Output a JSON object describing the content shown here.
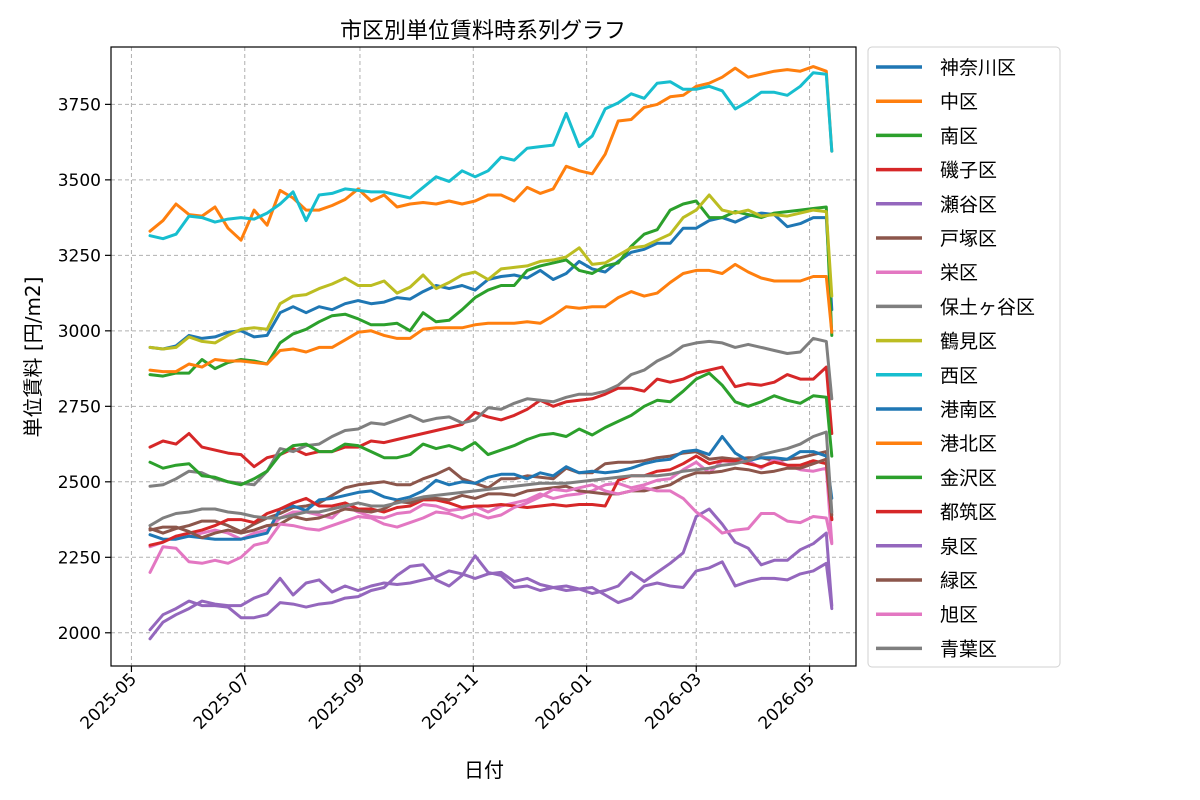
{
  "chart_data": {
    "type": "line",
    "title": "市区別単位賃料時系列グラフ",
    "xlabel": "日付",
    "ylabel": "単位賃料 [円/m2]",
    "x_start": "2025-05-11",
    "x_step_days": 7,
    "x_ticks": [
      "2025-05",
      "2025-07",
      "2025-09",
      "2025-11",
      "2026-01",
      "2026-03",
      "2026-05"
    ],
    "x_tick_dates": [
      "2025-05-01",
      "2025-07-01",
      "2025-09-01",
      "2025-11-01",
      "2026-01-01",
      "2026-03-01",
      "2026-05-01"
    ],
    "xlim": [
      "2025-04-20",
      "2026-05-26"
    ],
    "y_ticks": [
      2000,
      2250,
      2500,
      2750,
      3000,
      3250,
      3500,
      3750
    ],
    "ylim": [
      1890,
      3940
    ],
    "grid": true,
    "legend_position": "outside-right",
    "series": [
      {
        "name": "神奈川区",
        "color": "#1f77b4",
        "values": [
          2945,
          2940,
          2950,
          2985,
          2975,
          2980,
          2995,
          3000,
          2980,
          2985,
          3060,
          3080,
          3060,
          3080,
          3070,
          3090,
          3100,
          3090,
          3095,
          3110,
          3105,
          3130,
          3150,
          3140,
          3150,
          3135,
          3170,
          3180,
          3185,
          3175,
          3200,
          3170,
          3190,
          3230,
          3205,
          3195,
          3230,
          3260,
          3270,
          3290,
          3290,
          3340,
          3340,
          3365,
          3375,
          3360,
          3380,
          3390,
          3385,
          3345,
          3355,
          3375,
          3375,
          3070
        ]
      },
      {
        "name": "中区",
        "color": "#ff7f0e",
        "values": [
          3330,
          3365,
          3420,
          3385,
          3380,
          3410,
          3340,
          3300,
          3400,
          3350,
          3465,
          3440,
          3400,
          3400,
          3415,
          3435,
          3470,
          3430,
          3450,
          3410,
          3420,
          3425,
          3420,
          3430,
          3420,
          3430,
          3450,
          3450,
          3430,
          3475,
          3455,
          3470,
          3545,
          3530,
          3520,
          3585,
          3695,
          3700,
          3740,
          3750,
          3775,
          3780,
          3810,
          3820,
          3840,
          3870,
          3840,
          3850,
          3860,
          3865,
          3860,
          3875,
          3860,
          3595
        ]
      },
      {
        "name": "南区",
        "color": "#2ca02c",
        "values": [
          2855,
          2850,
          2860,
          2860,
          2905,
          2875,
          2895,
          2905,
          2900,
          2890,
          2960,
          2990,
          3005,
          3030,
          3050,
          3055,
          3040,
          3020,
          3020,
          3025,
          3000,
          3060,
          3030,
          3035,
          3070,
          3110,
          3135,
          3150,
          3150,
          3200,
          3215,
          3225,
          3235,
          3200,
          3190,
          3215,
          3225,
          3280,
          3320,
          3335,
          3400,
          3420,
          3430,
          3375,
          3375,
          3395,
          3385,
          3375,
          3390,
          3395,
          3400,
          3405,
          3410,
          2985
        ]
      },
      {
        "name": "磯子区",
        "color": "#d62728",
        "values": [
          2615,
          2635,
          2625,
          2660,
          2615,
          2605,
          2595,
          2590,
          2550,
          2580,
          2590,
          2610,
          2590,
          2600,
          2600,
          2615,
          2615,
          2635,
          2630,
          2640,
          2650,
          2660,
          2670,
          2680,
          2690,
          2730,
          2715,
          2705,
          2720,
          2740,
          2770,
          2750,
          2765,
          2770,
          2775,
          2790,
          2810,
          2810,
          2800,
          2840,
          2830,
          2840,
          2860,
          2870,
          2880,
          2815,
          2825,
          2820,
          2830,
          2855,
          2840,
          2840,
          2880,
          2660
        ]
      },
      {
        "name": "瀬谷区",
        "color": "#9467bd",
        "values": [
          2010,
          2060,
          2080,
          2105,
          2090,
          2090,
          2085,
          2050,
          2050,
          2060,
          2100,
          2095,
          2085,
          2095,
          2100,
          2115,
          2120,
          2140,
          2150,
          2190,
          2220,
          2225,
          2175,
          2155,
          2190,
          2255,
          2200,
          2190,
          2150,
          2155,
          2140,
          2150,
          2155,
          2145,
          2130,
          2140,
          2155,
          2200,
          2170,
          2200,
          2230,
          2265,
          2385,
          2410,
          2360,
          2300,
          2280,
          2225,
          2240,
          2240,
          2275,
          2295,
          2330,
          2090
        ]
      },
      {
        "name": "戸塚区",
        "color": "#8c564b",
        "values": [
          2345,
          2330,
          2345,
          2355,
          2370,
          2370,
          2355,
          2335,
          2360,
          2380,
          2395,
          2415,
          2420,
          2430,
          2455,
          2480,
          2490,
          2495,
          2500,
          2490,
          2490,
          2510,
          2525,
          2545,
          2510,
          2495,
          2480,
          2510,
          2510,
          2520,
          2515,
          2510,
          2545,
          2530,
          2530,
          2560,
          2565,
          2565,
          2570,
          2580,
          2585,
          2595,
          2600,
          2575,
          2580,
          2575,
          2580,
          2580,
          2570,
          2575,
          2580,
          2590,
          2600,
          2375
        ]
      },
      {
        "name": "栄区",
        "color": "#e377c2",
        "values": [
          2285,
          2300,
          2320,
          2320,
          2330,
          2340,
          2330,
          2310,
          2330,
          2340,
          2380,
          2400,
          2400,
          2390,
          2380,
          2420,
          2400,
          2385,
          2380,
          2395,
          2400,
          2425,
          2420,
          2405,
          2410,
          2420,
          2400,
          2420,
          2430,
          2440,
          2460,
          2445,
          2455,
          2460,
          2470,
          2490,
          2495,
          2480,
          2490,
          2505,
          2510,
          2540,
          2565,
          2530,
          2570,
          2565,
          2570,
          2545,
          2575,
          2555,
          2540,
          2535,
          2545,
          2300
        ]
      },
      {
        "name": "保土ヶ谷区",
        "color": "#7f7f7f",
        "values": [
          2485,
          2490,
          2510,
          2535,
          2530,
          2510,
          2500,
          2495,
          2490,
          2535,
          2610,
          2600,
          2620,
          2625,
          2650,
          2670,
          2675,
          2695,
          2690,
          2705,
          2720,
          2700,
          2710,
          2715,
          2695,
          2705,
          2745,
          2740,
          2760,
          2775,
          2770,
          2765,
          2780,
          2790,
          2790,
          2800,
          2820,
          2855,
          2870,
          2900,
          2920,
          2950,
          2960,
          2965,
          2960,
          2945,
          2955,
          2945,
          2935,
          2925,
          2930,
          2975,
          2965,
          2775
        ]
      },
      {
        "name": "鶴見区",
        "color": "#bcbd22",
        "values": [
          2945,
          2940,
          2945,
          2980,
          2965,
          2960,
          2985,
          3005,
          3010,
          3005,
          3090,
          3115,
          3120,
          3140,
          3155,
          3175,
          3150,
          3150,
          3165,
          3125,
          3145,
          3185,
          3140,
          3160,
          3185,
          3195,
          3170,
          3205,
          3210,
          3215,
          3230,
          3235,
          3245,
          3275,
          3220,
          3225,
          3250,
          3275,
          3280,
          3300,
          3320,
          3375,
          3400,
          3450,
          3400,
          3390,
          3400,
          3380,
          3385,
          3380,
          3390,
          3400,
          3395,
          3115
        ]
      },
      {
        "name": "西区",
        "color": "#17becf",
        "values": [
          3315,
          3305,
          3320,
          3380,
          3375,
          3360,
          3370,
          3375,
          3370,
          3390,
          3420,
          3460,
          3365,
          3450,
          3455,
          3470,
          3465,
          3460,
          3460,
          3450,
          3440,
          3475,
          3510,
          3495,
          3530,
          3510,
          3530,
          3575,
          3565,
          3605,
          3610,
          3615,
          3720,
          3610,
          3645,
          3735,
          3755,
          3785,
          3770,
          3820,
          3825,
          3800,
          3800,
          3810,
          3795,
          3735,
          3760,
          3790,
          3790,
          3780,
          3810,
          3855,
          3850,
          3595
        ]
      },
      {
        "name": "港南区",
        "color": "#1f77b4",
        "values": [
          2325,
          2310,
          2310,
          2320,
          2315,
          2310,
          2310,
          2310,
          2320,
          2330,
          2410,
          2420,
          2405,
          2440,
          2445,
          2455,
          2465,
          2470,
          2450,
          2440,
          2450,
          2470,
          2505,
          2490,
          2500,
          2495,
          2515,
          2525,
          2525,
          2510,
          2530,
          2520,
          2550,
          2530,
          2535,
          2530,
          2535,
          2545,
          2560,
          2570,
          2575,
          2600,
          2605,
          2590,
          2650,
          2595,
          2570,
          2580,
          2580,
          2575,
          2600,
          2600,
          2585,
          2445
        ]
      },
      {
        "name": "港北区",
        "color": "#ff7f0e",
        "values": [
          2870,
          2865,
          2865,
          2890,
          2880,
          2905,
          2900,
          2900,
          2895,
          2890,
          2935,
          2940,
          2930,
          2945,
          2945,
          2970,
          2995,
          3000,
          2985,
          2975,
          2975,
          3005,
          3010,
          3010,
          3010,
          3020,
          3025,
          3025,
          3025,
          3030,
          3025,
          3050,
          3080,
          3075,
          3080,
          3080,
          3110,
          3130,
          3115,
          3125,
          3160,
          3190,
          3200,
          3200,
          3190,
          3220,
          3195,
          3175,
          3165,
          3165,
          3165,
          3180,
          3180,
          2995
        ]
      },
      {
        "name": "金沢区",
        "color": "#2ca02c",
        "values": [
          2565,
          2545,
          2555,
          2560,
          2520,
          2515,
          2500,
          2490,
          2510,
          2535,
          2590,
          2620,
          2625,
          2600,
          2600,
          2625,
          2620,
          2600,
          2580,
          2580,
          2590,
          2625,
          2610,
          2620,
          2605,
          2630,
          2590,
          2605,
          2620,
          2640,
          2655,
          2660,
          2650,
          2675,
          2655,
          2680,
          2700,
          2720,
          2750,
          2770,
          2765,
          2800,
          2840,
          2860,
          2820,
          2765,
          2750,
          2765,
          2785,
          2770,
          2760,
          2785,
          2780,
          2585
        ]
      },
      {
        "name": "都筑区",
        "color": "#d62728",
        "values": [
          2290,
          2300,
          2320,
          2330,
          2340,
          2355,
          2375,
          2375,
          2365,
          2395,
          2410,
          2430,
          2445,
          2420,
          2420,
          2430,
          2410,
          2410,
          2400,
          2415,
          2420,
          2440,
          2440,
          2430,
          2415,
          2420,
          2420,
          2425,
          2420,
          2415,
          2420,
          2425,
          2420,
          2425,
          2425,
          2420,
          2505,
          2520,
          2520,
          2535,
          2540,
          2560,
          2585,
          2560,
          2570,
          2570,
          2560,
          2550,
          2565,
          2555,
          2555,
          2570,
          2560,
          2375
        ]
      },
      {
        "name": "泉区",
        "color": "#9467bd",
        "values": [
          1980,
          2035,
          2060,
          2080,
          2105,
          2095,
          2090,
          2090,
          2115,
          2130,
          2180,
          2125,
          2165,
          2175,
          2135,
          2155,
          2140,
          2155,
          2165,
          2160,
          2165,
          2175,
          2185,
          2205,
          2195,
          2180,
          2195,
          2200,
          2170,
          2180,
          2160,
          2150,
          2140,
          2145,
          2150,
          2125,
          2100,
          2115,
          2155,
          2165,
          2155,
          2150,
          2205,
          2215,
          2235,
          2155,
          2170,
          2180,
          2180,
          2175,
          2195,
          2205,
          2230,
          2080
        ]
      },
      {
        "name": "緑区",
        "color": "#8c564b",
        "values": [
          2340,
          2350,
          2350,
          2335,
          2315,
          2330,
          2340,
          2330,
          2340,
          2355,
          2360,
          2385,
          2375,
          2380,
          2395,
          2410,
          2405,
          2400,
          2410,
          2435,
          2430,
          2445,
          2445,
          2440,
          2455,
          2445,
          2460,
          2460,
          2455,
          2470,
          2475,
          2480,
          2485,
          2470,
          2465,
          2460,
          2460,
          2470,
          2470,
          2480,
          2490,
          2515,
          2530,
          2530,
          2535,
          2545,
          2540,
          2530,
          2535,
          2545,
          2545,
          2560,
          2575,
          2390
        ]
      },
      {
        "name": "旭区",
        "color": "#e377c2",
        "values": [
          2200,
          2285,
          2280,
          2235,
          2230,
          2240,
          2230,
          2250,
          2290,
          2300,
          2360,
          2355,
          2345,
          2340,
          2355,
          2370,
          2385,
          2380,
          2360,
          2350,
          2365,
          2380,
          2400,
          2395,
          2380,
          2395,
          2380,
          2390,
          2415,
          2430,
          2450,
          2475,
          2470,
          2480,
          2490,
          2470,
          2460,
          2470,
          2480,
          2470,
          2470,
          2445,
          2400,
          2370,
          2330,
          2340,
          2345,
          2395,
          2395,
          2370,
          2365,
          2385,
          2380,
          2295
        ]
      },
      {
        "name": "青葉区",
        "color": "#7f7f7f",
        "values": [
          2355,
          2380,
          2395,
          2400,
          2410,
          2410,
          2400,
          2395,
          2385,
          2380,
          2380,
          2390,
          2400,
          2400,
          2410,
          2420,
          2430,
          2420,
          2420,
          2430,
          2440,
          2450,
          2455,
          2460,
          2465,
          2470,
          2475,
          2480,
          2485,
          2490,
          2495,
          2495,
          2495,
          2500,
          2505,
          2510,
          2515,
          2520,
          2520,
          2520,
          2525,
          2535,
          2540,
          2545,
          2555,
          2560,
          2570,
          2590,
          2600,
          2610,
          2625,
          2650,
          2665,
          2400
        ]
      }
    ]
  }
}
